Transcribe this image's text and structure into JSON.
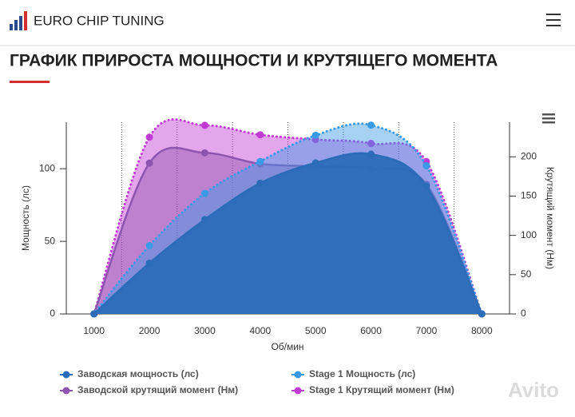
{
  "header": {
    "logo": "EURO CHIP TUNING",
    "title": "ГРАФИК ПРИРОСТА МОЩНОСТИ И КРУТЯЩЕГО МОМЕНТА"
  },
  "watermark": "Avito",
  "chart_data": {
    "type": "area",
    "x_label": "Об/мин",
    "y_label": "Мощность (лс)",
    "y2_label": "Крутящий момент (Нм)",
    "categories": [
      "1000",
      "2000",
      "3000",
      "4000",
      "5000",
      "6000",
      "7000",
      "8000"
    ],
    "ylim": [
      0,
      132
    ],
    "yticks": [
      0,
      50,
      100
    ],
    "y2lim": [
      0,
      244
    ],
    "y2ticks": [
      0,
      50,
      100,
      150,
      200
    ],
    "series": [
      {
        "name": "Заводская мощность (лс)",
        "color": "#2b6cb8",
        "values": [
          0,
          35,
          65,
          90,
          104,
          110,
          88,
          0
        ]
      },
      {
        "name": "Stage 1 Мощность (лс)",
        "color": "#3a9ae6",
        "values": [
          0,
          47,
          83,
          105,
          123,
          130,
          102,
          0
        ]
      },
      {
        "name": "Заводской крутящий момент (Нм)",
        "color": "#8e55b0",
        "axis": "y2",
        "values": [
          0,
          192,
          205,
          191,
          188,
          185,
          165,
          0
        ]
      },
      {
        "name": "Stage 1 Крутящий момент (Нм)",
        "color": "#c03ad4",
        "axis": "y2",
        "values": [
          0,
          225,
          240,
          228,
          222,
          217,
          194,
          0
        ]
      }
    ]
  }
}
